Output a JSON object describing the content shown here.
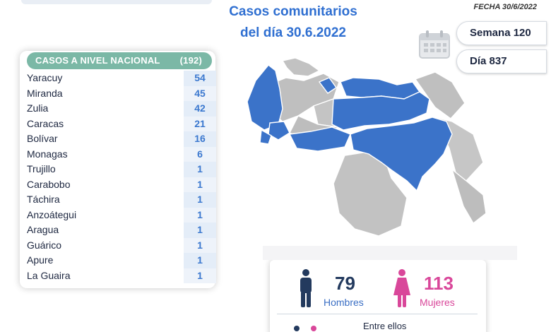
{
  "header": {
    "date_label": "FECHA 30/6/2022",
    "title_line1": "Casos comunitarios",
    "title_line2": "del día 30.6.2022",
    "week_label": "Semana 120",
    "day_label": "Día 837"
  },
  "table": {
    "header_label": "CASOS A NIVEL NACIONAL",
    "header_total": "(192)",
    "rows": [
      {
        "name": "Yaracuy",
        "count": "54"
      },
      {
        "name": "Miranda",
        "count": "45"
      },
      {
        "name": "Zulia",
        "count": "42"
      },
      {
        "name": "Caracas",
        "count": "21"
      },
      {
        "name": "Bolívar",
        "count": "16"
      },
      {
        "name": "Monagas",
        "count": "6"
      },
      {
        "name": "Trujillo",
        "count": "1"
      },
      {
        "name": "Carabobo",
        "count": "1"
      },
      {
        "name": "Táchira",
        "count": "1"
      },
      {
        "name": "Anzoátegui",
        "count": "1"
      },
      {
        "name": "Aragua",
        "count": "1"
      },
      {
        "name": "Guárico",
        "count": "1"
      },
      {
        "name": "Apure",
        "count": "1"
      },
      {
        "name": "La Guaira",
        "count": "1"
      }
    ]
  },
  "stats": {
    "men_count": "79",
    "men_label": "Hombres",
    "women_count": "113",
    "women_label": "Mujeres",
    "between_label": "Entre ellos"
  },
  "colors": {
    "title_blue": "#2f6fd1",
    "header_green": "#7bb8a6",
    "count_blue": "#3b78cf",
    "men_navy": "#233a5e",
    "women_pink": "#d9479a",
    "map_highlight": "#3b73c9",
    "map_gray": "#bfbfbf"
  },
  "icons": {
    "calendar": "calendar-icon",
    "man": "man-icon",
    "woman": "woman-icon"
  }
}
